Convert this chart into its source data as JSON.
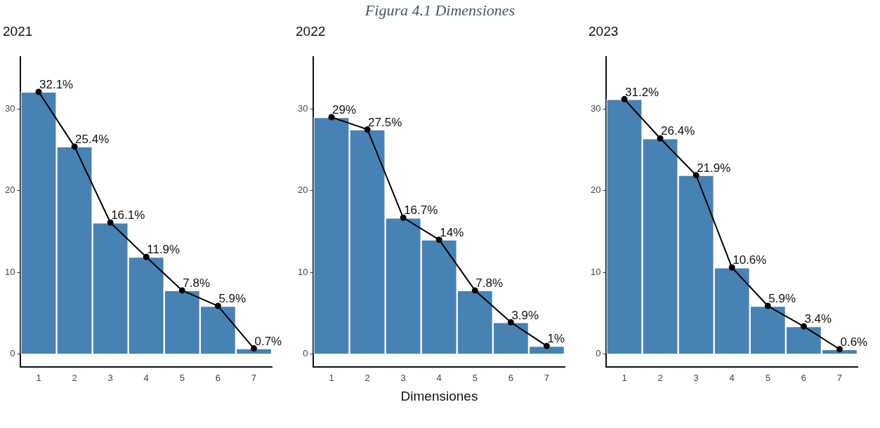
{
  "chart_data": [
    {
      "type": "bar",
      "title": "2021",
      "annotations": [
        "Figura 4.1 Dimensiones"
      ],
      "categories": [
        "1",
        "2",
        "3",
        "4",
        "5",
        "6",
        "7"
      ],
      "ylim": [
        -1.6,
        36.4
      ],
      "yticks": [
        0,
        10,
        20,
        30
      ],
      "grid": false,
      "legend": false,
      "marker": "circle",
      "series": [
        {
          "color": "#4682b4",
          "values": [
            32.1,
            25.4,
            16.1,
            11.9,
            7.8,
            5.9,
            0.7
          ]
        },
        {
          "type": "line",
          "color": "#000000",
          "values": [
            32.1,
            25.4,
            16.1,
            11.9,
            7.8,
            5.9,
            0.7
          ],
          "value_labels": [
            "32.1%",
            "25.4%",
            "16.1%",
            "11.9%",
            "7.8%",
            "5.9%",
            "0.7%"
          ]
        }
      ]
    },
    {
      "type": "bar",
      "title": "2022",
      "xlabel": "Dimensiones",
      "categories": [
        "1",
        "2",
        "3",
        "4",
        "5",
        "6",
        "7"
      ],
      "ylim": [
        -1.6,
        36.4
      ],
      "yticks": [
        0,
        10,
        20,
        30
      ],
      "grid": false,
      "legend": false,
      "marker": "circle",
      "series": [
        {
          "color": "#4682b4",
          "values": [
            29,
            27.5,
            16.7,
            14,
            7.8,
            3.9,
            1
          ]
        },
        {
          "type": "line",
          "color": "#000000",
          "values": [
            29,
            27.5,
            16.7,
            14,
            7.8,
            3.9,
            1
          ],
          "value_labels": [
            "29%",
            "27.5%",
            "16.7%",
            "14%",
            "7.8%",
            "3.9%",
            "1%"
          ]
        }
      ]
    },
    {
      "type": "bar",
      "title": "2023",
      "categories": [
        "1",
        "2",
        "3",
        "4",
        "5",
        "6",
        "7"
      ],
      "ylim": [
        -1.6,
        36.4
      ],
      "yticks": [
        0,
        10,
        20,
        30
      ],
      "grid": false,
      "legend": false,
      "marker": "circle",
      "series": [
        {
          "color": "#4682b4",
          "values": [
            31.2,
            26.4,
            21.9,
            10.6,
            5.9,
            3.4,
            0.6
          ]
        },
        {
          "type": "line",
          "color": "#000000",
          "values": [
            31.2,
            26.4,
            21.9,
            10.6,
            5.9,
            3.4,
            0.6
          ],
          "value_labels": [
            "31.2%",
            "26.4%",
            "21.9%",
            "10.6%",
            "5.9%",
            "3.4%",
            "0.6%"
          ]
        }
      ]
    }
  ]
}
